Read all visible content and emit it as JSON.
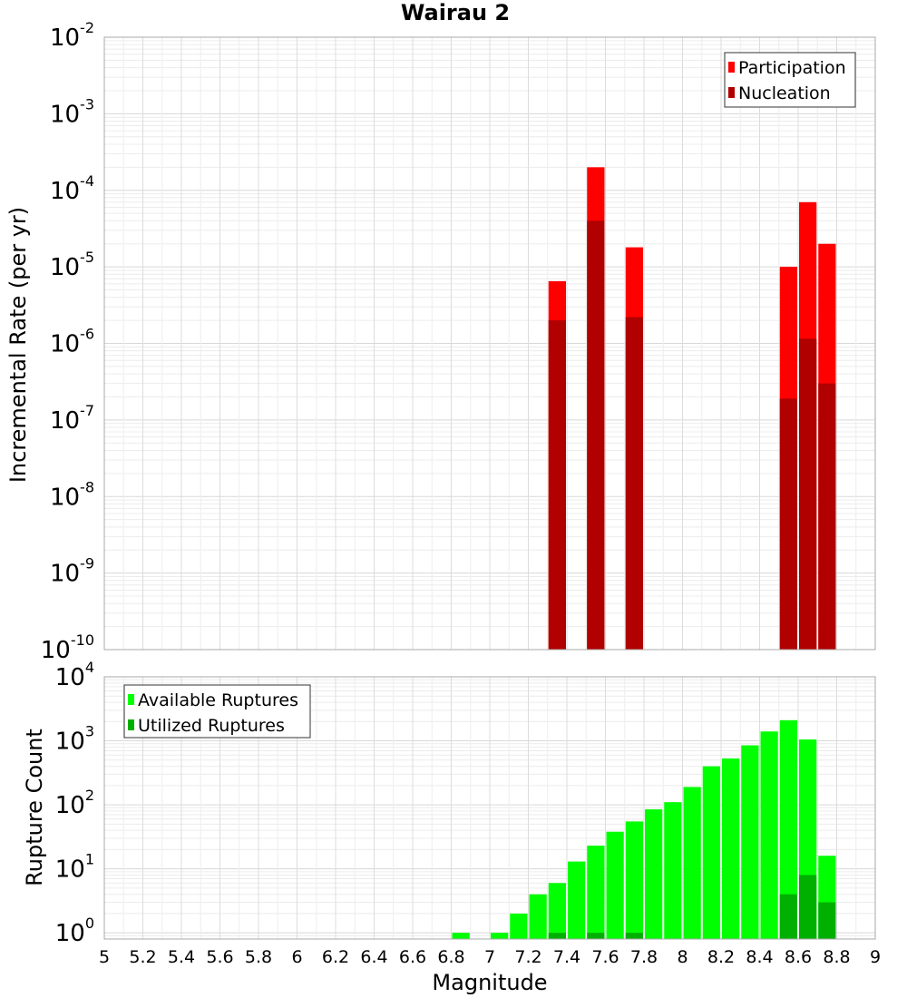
{
  "chart_data": {
    "title": "Wairau 2",
    "xlabel": "Magnitude",
    "x_ticks": [
      "5",
      "5.2",
      "5.4",
      "5.6",
      "5.8",
      "6",
      "6.2",
      "6.4",
      "6.6",
      "6.8",
      "7",
      "7.2",
      "7.4",
      "7.6",
      "7.8",
      "8",
      "8.2",
      "8.4",
      "8.6",
      "8.8",
      "9"
    ],
    "xlim": [
      5,
      9
    ],
    "bin_width": 0.1,
    "panels": [
      {
        "type": "bar",
        "ylabel": "Incremental Rate (per yr)",
        "yscale": "log",
        "ylim": [
          1e-10,
          0.01
        ],
        "y_tick_exponents": [
          "-2",
          "-3",
          "-4",
          "-5",
          "-6",
          "-7",
          "-8",
          "-9",
          "-10"
        ],
        "legend_position": "top-right",
        "grid": true,
        "series": [
          {
            "name": "Participation",
            "color": "#ff0000",
            "points": [
              {
                "x": 7.35,
                "y": 6.5e-06
              },
              {
                "x": 7.55,
                "y": 0.0002
              },
              {
                "x": 7.75,
                "y": 1.8e-05
              },
              {
                "x": 8.55,
                "y": 1e-05
              },
              {
                "x": 8.65,
                "y": 7e-05
              },
              {
                "x": 8.75,
                "y": 2e-05
              }
            ]
          },
          {
            "name": "Nucleation",
            "color": "#b00000",
            "points": [
              {
                "x": 7.35,
                "y": 2e-06
              },
              {
                "x": 7.55,
                "y": 4e-05
              },
              {
                "x": 7.75,
                "y": 2.2e-06
              },
              {
                "x": 8.55,
                "y": 1.9e-07
              },
              {
                "x": 8.65,
                "y": 1.15e-06
              },
              {
                "x": 8.75,
                "y": 3e-07
              }
            ]
          }
        ]
      },
      {
        "type": "bar",
        "ylabel": "Rupture Count",
        "yscale": "log",
        "ylim": [
          0.8,
          10000
        ],
        "y_tick_exponents": [
          "4",
          "3",
          "2",
          "1",
          "0"
        ],
        "legend_position": "top-left",
        "grid": true,
        "series": [
          {
            "name": "Available Ruptures",
            "color": "#00ff00",
            "points": [
              {
                "x": 6.85,
                "y": 1
              },
              {
                "x": 7.05,
                "y": 1
              },
              {
                "x": 7.15,
                "y": 2
              },
              {
                "x": 7.25,
                "y": 4
              },
              {
                "x": 7.35,
                "y": 6
              },
              {
                "x": 7.45,
                "y": 13
              },
              {
                "x": 7.55,
                "y": 23
              },
              {
                "x": 7.65,
                "y": 38
              },
              {
                "x": 7.75,
                "y": 55
              },
              {
                "x": 7.85,
                "y": 85
              },
              {
                "x": 7.95,
                "y": 110
              },
              {
                "x": 8.05,
                "y": 190
              },
              {
                "x": 8.15,
                "y": 400
              },
              {
                "x": 8.25,
                "y": 530
              },
              {
                "x": 8.35,
                "y": 850
              },
              {
                "x": 8.45,
                "y": 1400
              },
              {
                "x": 8.55,
                "y": 2100
              },
              {
                "x": 8.65,
                "y": 1050
              },
              {
                "x": 8.75,
                "y": 16
              }
            ]
          },
          {
            "name": "Utilized Ruptures",
            "color": "#00b000",
            "points": [
              {
                "x": 7.35,
                "y": 1
              },
              {
                "x": 7.55,
                "y": 1
              },
              {
                "x": 7.75,
                "y": 1
              },
              {
                "x": 8.55,
                "y": 4
              },
              {
                "x": 8.65,
                "y": 8
              },
              {
                "x": 8.75,
                "y": 3
              }
            ]
          }
        ]
      }
    ]
  }
}
